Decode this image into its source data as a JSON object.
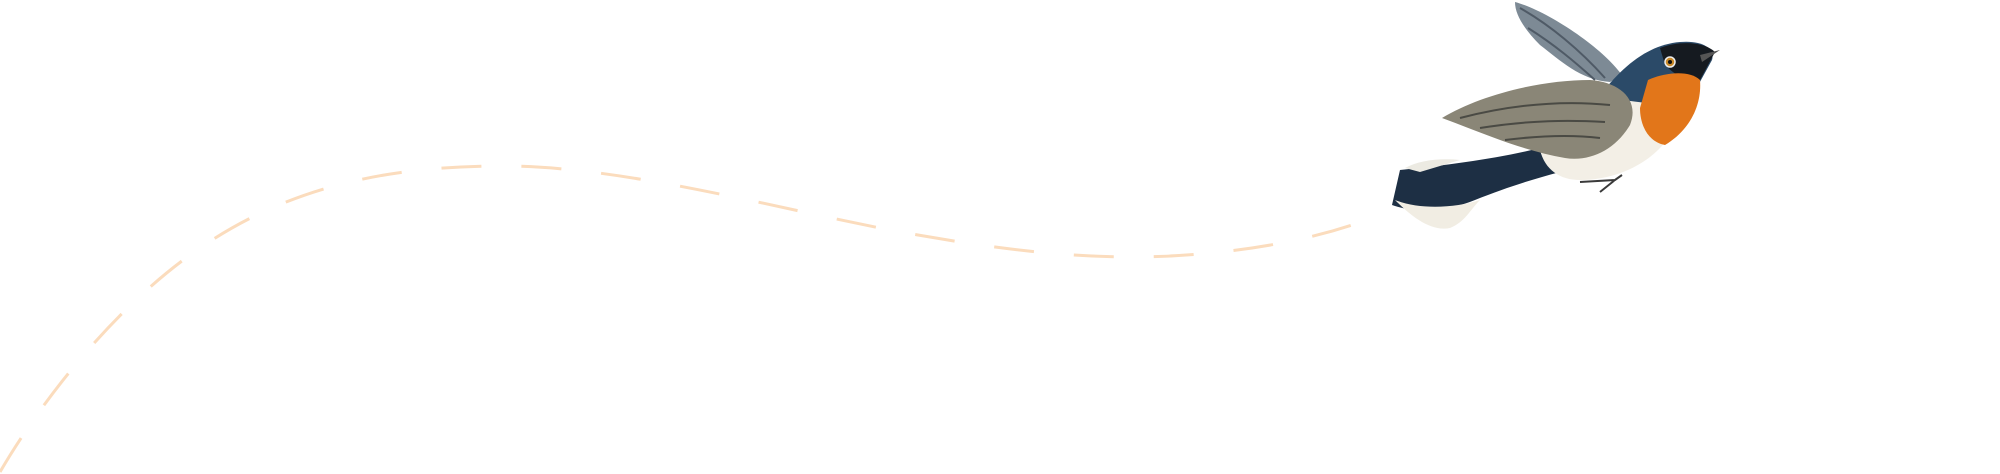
{
  "colors": {
    "background": "#ffffff",
    "flight_path": "#fbdcbd",
    "bird_throat": "#e2761a",
    "bird_back": "#2a4560",
    "bird_wing": "#8a8677",
    "bird_belly": "#f3efe6"
  },
  "illustration": {
    "subject": "bird-icon",
    "path_style": "dashed"
  }
}
